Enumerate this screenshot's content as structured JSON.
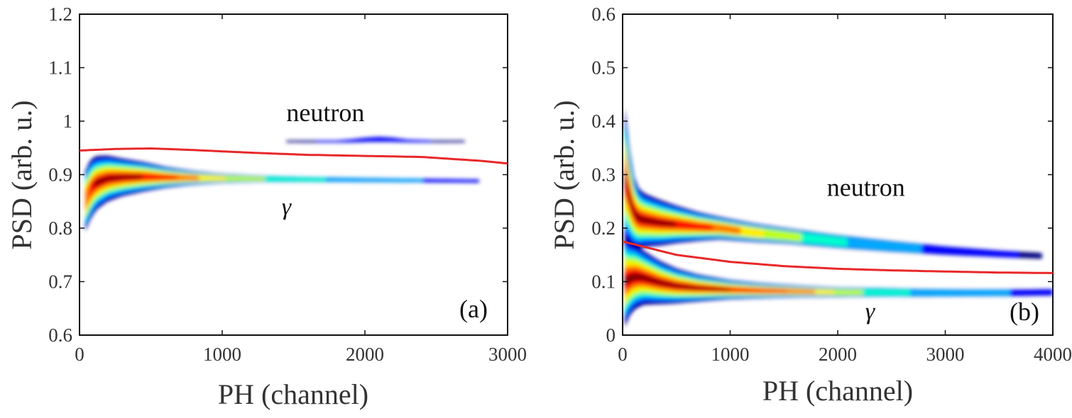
{
  "chart_data": [
    {
      "type": "heatmap",
      "panel_label": "(a)",
      "xlabel": "PH (channel)",
      "ylabel": "PSD (arb. u.)",
      "xlim": [
        0,
        3000
      ],
      "ylim": [
        0.6,
        1.2
      ],
      "x_ticks": [
        0,
        1000,
        2000,
        3000
      ],
      "y_ticks": [
        0.6,
        0.7,
        0.8,
        0.9,
        1,
        1.1,
        1.2
      ],
      "x_tick_labels": [
        "0",
        "1000",
        "2000",
        "3000"
      ],
      "y_tick_labels": [
        "0.6",
        "0.7",
        "0.8",
        "0.9",
        "1",
        "1.1",
        "1.2"
      ],
      "colormap": [
        "#00007f",
        "#0000ff",
        "#00aaff",
        "#00ffcc",
        "#bfff00",
        "#ffee00",
        "#ff7700",
        "#ff0000",
        "#7f0000"
      ],
      "annotations": [
        {
          "text": "neutron",
          "x": 1450,
          "y": 1.0
        },
        {
          "text": "γ",
          "x": 1450,
          "y": 0.825
        }
      ],
      "discrimination_curve": {
        "color": "#e8282a",
        "x": [
          0,
          250,
          500,
          800,
          1200,
          1600,
          2000,
          2400,
          2800,
          3000
        ],
        "y": [
          0.945,
          0.948,
          0.949,
          0.946,
          0.941,
          0.937,
          0.935,
          0.933,
          0.926,
          0.921
        ]
      },
      "gamma_band": {
        "x": [
          40,
          80,
          120,
          200,
          300,
          450,
          600,
          800,
          1000,
          1300,
          1600,
          2000,
          2400,
          2800
        ],
        "y": [
          0.85,
          0.875,
          0.885,
          0.893,
          0.895,
          0.896,
          0.895,
          0.894,
          0.893,
          0.892,
          0.891,
          0.89,
          0.889,
          0.888
        ],
        "width": [
          0.12,
          0.11,
          0.1,
          0.085,
          0.07,
          0.055,
          0.04,
          0.028,
          0.02,
          0.014,
          0.012,
          0.011,
          0.01,
          0.009
        ],
        "intensity": [
          0.85,
          1,
          1,
          1,
          1,
          1,
          0.95,
          0.8,
          0.65,
          0.5,
          0.4,
          0.32,
          0.25,
          0.18
        ]
      },
      "neutron_band": {
        "x": [
          1450,
          1600,
          1800,
          1900,
          2000,
          2100,
          2200,
          2300,
          2500,
          2700
        ],
        "y": [
          0.962,
          0.962,
          0.962,
          0.963,
          0.965,
          0.966,
          0.965,
          0.963,
          0.962,
          0.962
        ],
        "width": [
          0.006,
          0.006,
          0.006,
          0.009,
          0.012,
          0.014,
          0.012,
          0.008,
          0.006,
          0.006
        ],
        "intensity": [
          0.1,
          0.12,
          0.14,
          0.2,
          0.24,
          0.25,
          0.22,
          0.16,
          0.12,
          0.1
        ]
      }
    },
    {
      "type": "heatmap",
      "panel_label": "(b)",
      "xlabel": "PH (channel)",
      "ylabel": "PSD (arb. u.)",
      "xlim": [
        0,
        4000
      ],
      "ylim": [
        0,
        0.6
      ],
      "x_ticks": [
        0,
        1000,
        2000,
        3000,
        4000
      ],
      "y_ticks": [
        0,
        0.1,
        0.2,
        0.3,
        0.4,
        0.5,
        0.6
      ],
      "x_tick_labels": [
        "0",
        "1000",
        "2000",
        "3000",
        "4000"
      ],
      "y_tick_labels": [
        "0",
        "0.1",
        "0.2",
        "0.3",
        "0.4",
        "0.5",
        "0.6"
      ],
      "colormap": [
        "#00007f",
        "#0000ff",
        "#00aaff",
        "#00ffcc",
        "#bfff00",
        "#ffee00",
        "#ff7700",
        "#ff0000",
        "#7f0000"
      ],
      "annotations": [
        {
          "text": "neutron",
          "x": 1900,
          "y": 0.26
        },
        {
          "text": "γ",
          "x": 2300,
          "y": 0.03
        }
      ],
      "discrimination_curve": {
        "color": "#e8282a",
        "x": [
          0,
          200,
          500,
          1000,
          1500,
          2000,
          2500,
          3000,
          3500,
          4000
        ],
        "y": [
          0.175,
          0.165,
          0.15,
          0.137,
          0.129,
          0.124,
          0.121,
          0.119,
          0.117,
          0.116
        ]
      },
      "gamma_band": {
        "x": [
          20,
          60,
          120,
          200,
          350,
          500,
          700,
          1000,
          1300,
          1600,
          1800,
          2000,
          2400,
          2800,
          3200,
          3600,
          4000
        ],
        "y": [
          0.1,
          0.105,
          0.11,
          0.107,
          0.098,
          0.092,
          0.088,
          0.085,
          0.083,
          0.082,
          0.081,
          0.08,
          0.08,
          0.079,
          0.079,
          0.079,
          0.08
        ],
        "width": [
          0.17,
          0.14,
          0.12,
          0.1,
          0.08,
          0.065,
          0.05,
          0.035,
          0.028,
          0.024,
          0.022,
          0.021,
          0.02,
          0.019,
          0.018,
          0.018,
          0.018
        ],
        "intensity": [
          1,
          1,
          1,
          1,
          1,
          1,
          1,
          1,
          0.95,
          0.85,
          0.75,
          0.6,
          0.45,
          0.35,
          0.3,
          0.25,
          0.22
        ]
      },
      "neutron_band": {
        "x": [
          20,
          60,
          120,
          200,
          350,
          500,
          700,
          900,
          1200,
          1500,
          2000,
          2500,
          3000,
          3500,
          3900
        ],
        "y": [
          0.3,
          0.26,
          0.22,
          0.215,
          0.21,
          0.207,
          0.203,
          0.2,
          0.192,
          0.186,
          0.175,
          0.166,
          0.158,
          0.152,
          0.148
        ],
        "width": [
          0.25,
          0.18,
          0.12,
          0.1,
          0.085,
          0.07,
          0.055,
          0.045,
          0.04,
          0.036,
          0.032,
          0.028,
          0.024,
          0.02,
          0.018
        ],
        "intensity": [
          1,
          1,
          1,
          1,
          1,
          1,
          0.95,
          0.85,
          0.7,
          0.55,
          0.4,
          0.3,
          0.22,
          0.15,
          0.1
        ]
      }
    }
  ]
}
